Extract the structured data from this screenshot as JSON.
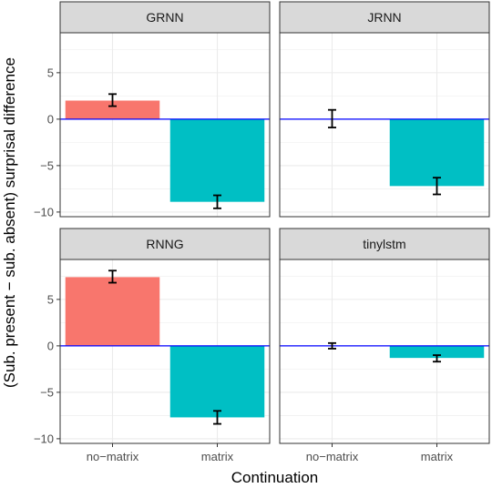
{
  "chart_data": {
    "type": "bar",
    "ylabel": "(Sub. present − sub. absent) surprisal difference",
    "xlabel": "Continuation",
    "categories": [
      "no−matrix",
      "matrix"
    ],
    "ylim": [
      -10.5,
      9.3
    ],
    "yticks": [
      5,
      0,
      -5,
      -10
    ],
    "ytick_labels": [
      "5",
      "0",
      "−5",
      "−10"
    ],
    "grid": true,
    "legend": "none",
    "colors": {
      "no-matrix": "#F8766D",
      "matrix": "#00BFC4",
      "zero_line": "#0000FF",
      "panel_bg": "#FFFFFF",
      "strip_bg": "#D9D9D9",
      "grid_major": "#EBEBEB",
      "frame": "#333333"
    },
    "panels": [
      {
        "name": "GRNN",
        "values": [
          2.0,
          -8.9
        ],
        "errors": [
          [
            1.4,
            2.7
          ],
          [
            -9.6,
            -8.2
          ]
        ]
      },
      {
        "name": "JRNN",
        "values": [
          0.0,
          -7.2
        ],
        "errors": [
          [
            -0.9,
            1.0
          ],
          [
            -8.1,
            -6.3
          ]
        ]
      },
      {
        "name": "RNNG",
        "values": [
          7.4,
          -7.7
        ],
        "errors": [
          [
            6.8,
            8.1
          ],
          [
            -8.4,
            -7.0
          ]
        ]
      },
      {
        "name": "tinylstm",
        "values": [
          0.0,
          -1.3
        ],
        "errors": [
          [
            -0.3,
            0.3
          ],
          [
            -1.7,
            -1.0
          ]
        ]
      }
    ]
  }
}
